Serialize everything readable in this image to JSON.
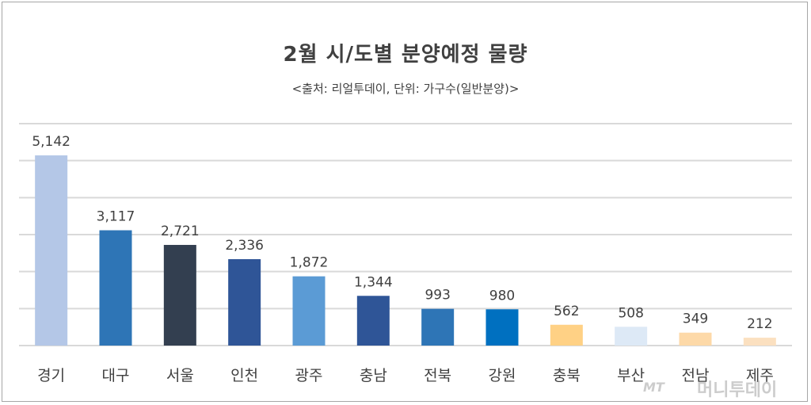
{
  "chart_data": {
    "type": "bar",
    "title": "2월 시/도별 분양예정 물량",
    "subtitle": "<출처: 리얼투데이, 단위: 가구수(일반분양)>",
    "categories": [
      "경기",
      "대구",
      "서울",
      "인천",
      "광주",
      "충남",
      "전북",
      "강원",
      "충북",
      "부산",
      "전남",
      "제주"
    ],
    "values": [
      5142,
      3117,
      2721,
      2336,
      1872,
      1344,
      993,
      980,
      562,
      508,
      349,
      212
    ],
    "value_labels": [
      "5,142",
      "3,117",
      "2,721",
      "2,336",
      "1,872",
      "1,344",
      "993",
      "980",
      "562",
      "508",
      "349",
      "212"
    ],
    "colors": [
      "#b4c7e7",
      "#2e75b6",
      "#333f50",
      "#2f5597",
      "#5b9bd5",
      "#2f5597",
      "#2e75b6",
      "#0070c0",
      "#ffd185",
      "#dde9f6",
      "#fdd9a8",
      "#fbe0c0"
    ],
    "ylim": [
      0,
      6000
    ],
    "grid": true,
    "gridline_count": 7
  },
  "watermark": {
    "brand": "MT",
    "name": "머니투데이"
  }
}
